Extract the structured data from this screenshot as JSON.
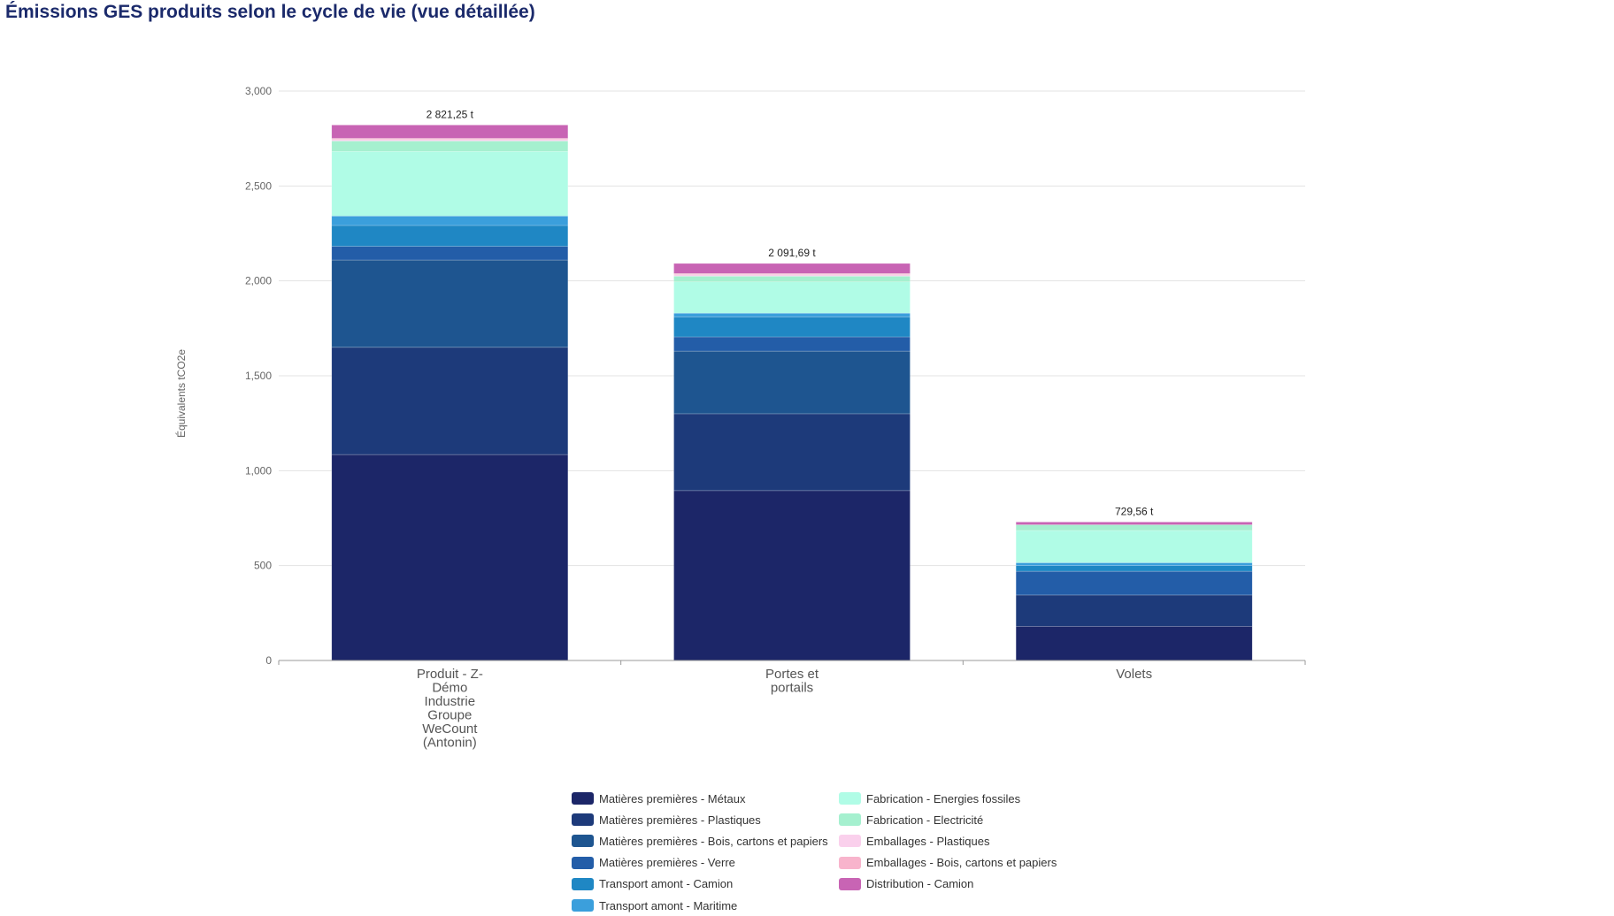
{
  "page": {
    "title": "Émissions GES produits selon le cycle de vie (vue détaillée)"
  },
  "chart_data": {
    "type": "bar",
    "stacked": true,
    "ylabel": "Équivalents tCO2e",
    "xlabel": "",
    "ylim": [
      0,
      3000
    ],
    "yticks": [
      0,
      500,
      1000,
      1500,
      2000,
      2500,
      3000
    ],
    "ytick_labels": [
      "0",
      "500",
      "1,000",
      "1,500",
      "2,000",
      "2,500",
      "3,000"
    ],
    "grid": true,
    "legend_position": "bottom",
    "categories": [
      [
        "Produit - Z-",
        "Démo",
        "Industrie",
        "Groupe",
        "WeCount",
        "(Antonin)"
      ],
      [
        "Portes et",
        "portails"
      ],
      [
        "Volets"
      ]
    ],
    "totals": [
      2821.25,
      2091.69,
      729.56
    ],
    "total_labels": [
      "2 821,25 t",
      "2 091,69 t",
      "729,56 t"
    ],
    "series": [
      {
        "name": "Matières premières - Métaux",
        "color": "#1c2668",
        "values": [
          1085,
          895,
          180
        ]
      },
      {
        "name": "Matières premières - Plastiques",
        "color": "#1d3a7a",
        "values": [
          565,
          405,
          165
        ]
      },
      {
        "name": "Matières premières - Bois, cartons et papiers",
        "color": "#1e5590",
        "values": [
          460,
          330,
          0
        ]
      },
      {
        "name": "Matières premières - Verre",
        "color": "#235da8",
        "values": [
          72,
          75,
          125
        ]
      },
      {
        "name": "Transport amont - Camion",
        "color": "#1f87c4",
        "values": [
          110,
          105,
          30
        ]
      },
      {
        "name": "Transport amont - Maritime",
        "color": "#3b9fdc",
        "values": [
          50,
          20,
          15
        ]
      },
      {
        "name": "Fabrication - Energies fossiles",
        "color": "#b0fce6",
        "values": [
          340,
          165,
          170
        ]
      },
      {
        "name": "Fabrication - Electricité",
        "color": "#a5f0cf",
        "values": [
          55,
          30,
          30
        ]
      },
      {
        "name": "Emballages - Plastiques",
        "color": "#fad0ec",
        "values": [
          8,
          8,
          0
        ]
      },
      {
        "name": "Emballages - Bois, cartons et papiers",
        "color": "#f8b4cc",
        "values": [
          6,
          6,
          0
        ]
      },
      {
        "name": "Distribution - Camion",
        "color": "#c864b4",
        "values": [
          70.25,
          52.69,
          14.56
        ]
      }
    ]
  }
}
